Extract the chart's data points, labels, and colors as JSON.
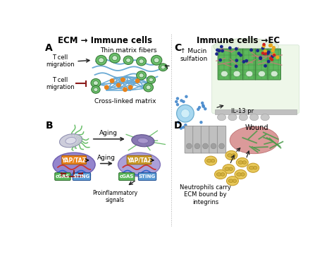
{
  "title_left": "ECM → Immune cells",
  "title_right": "Immune cells →EC",
  "bg_color": "#ffffff",
  "label_A": "A",
  "label_B": "B",
  "label_C": "C",
  "label_D": "D",
  "thin_matrix_fibers": "Thin matrix fibers",
  "cross_linked_matrix": "Cross-linked matrix",
  "t_cell_migration": "T cell\nmigration",
  "aging": "Aging",
  "yap_taz": "YAP/TAZ",
  "cgas": "cGAS",
  "sting": "STING",
  "proinflammatory": "Proinflammatory\nsignals",
  "mucin_sulfation": "↑ Mucin\nsulfation",
  "il13": "IL-13 pr",
  "wound": "Wound",
  "neutrophils_text": "Neutrophils carry\nECM bound by\nintegrins",
  "cell_green": "#6abf6a",
  "cell_green_dark": "#3a7a3a",
  "fiber_blue": "#6aaad4",
  "crosslink_orange": "#e8821a",
  "arrow_color": "#222222",
  "inhibit_color": "#8b1a1a",
  "yap_orange": "#e8821a",
  "nucleus_purple": "#8878c8",
  "cgas_green": "#5cb85c",
  "sting_blue": "#5b9bd5",
  "dna_red": "#cc3333",
  "dna_blue": "#3366cc",
  "aging_arrow": "#333333",
  "neutrophil_yellow": "#e8c85a",
  "neutrophil_edge": "#c8a030"
}
